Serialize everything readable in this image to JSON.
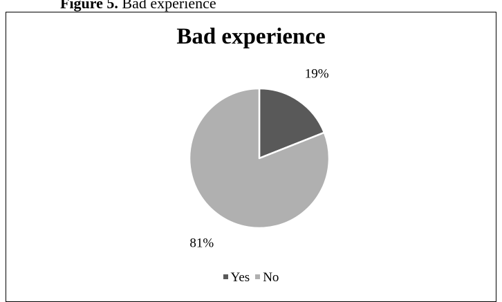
{
  "caption": {
    "label": "Figure 5.",
    "text": " Bad experience"
  },
  "chart_data": {
    "type": "pie",
    "title": "Bad experience",
    "categories": [
      "Yes",
      "No"
    ],
    "values": [
      19,
      81
    ],
    "value_labels": [
      "19%",
      "81%"
    ],
    "colors": [
      "#595959",
      "#b0b0b0"
    ],
    "legend_position": "bottom"
  }
}
